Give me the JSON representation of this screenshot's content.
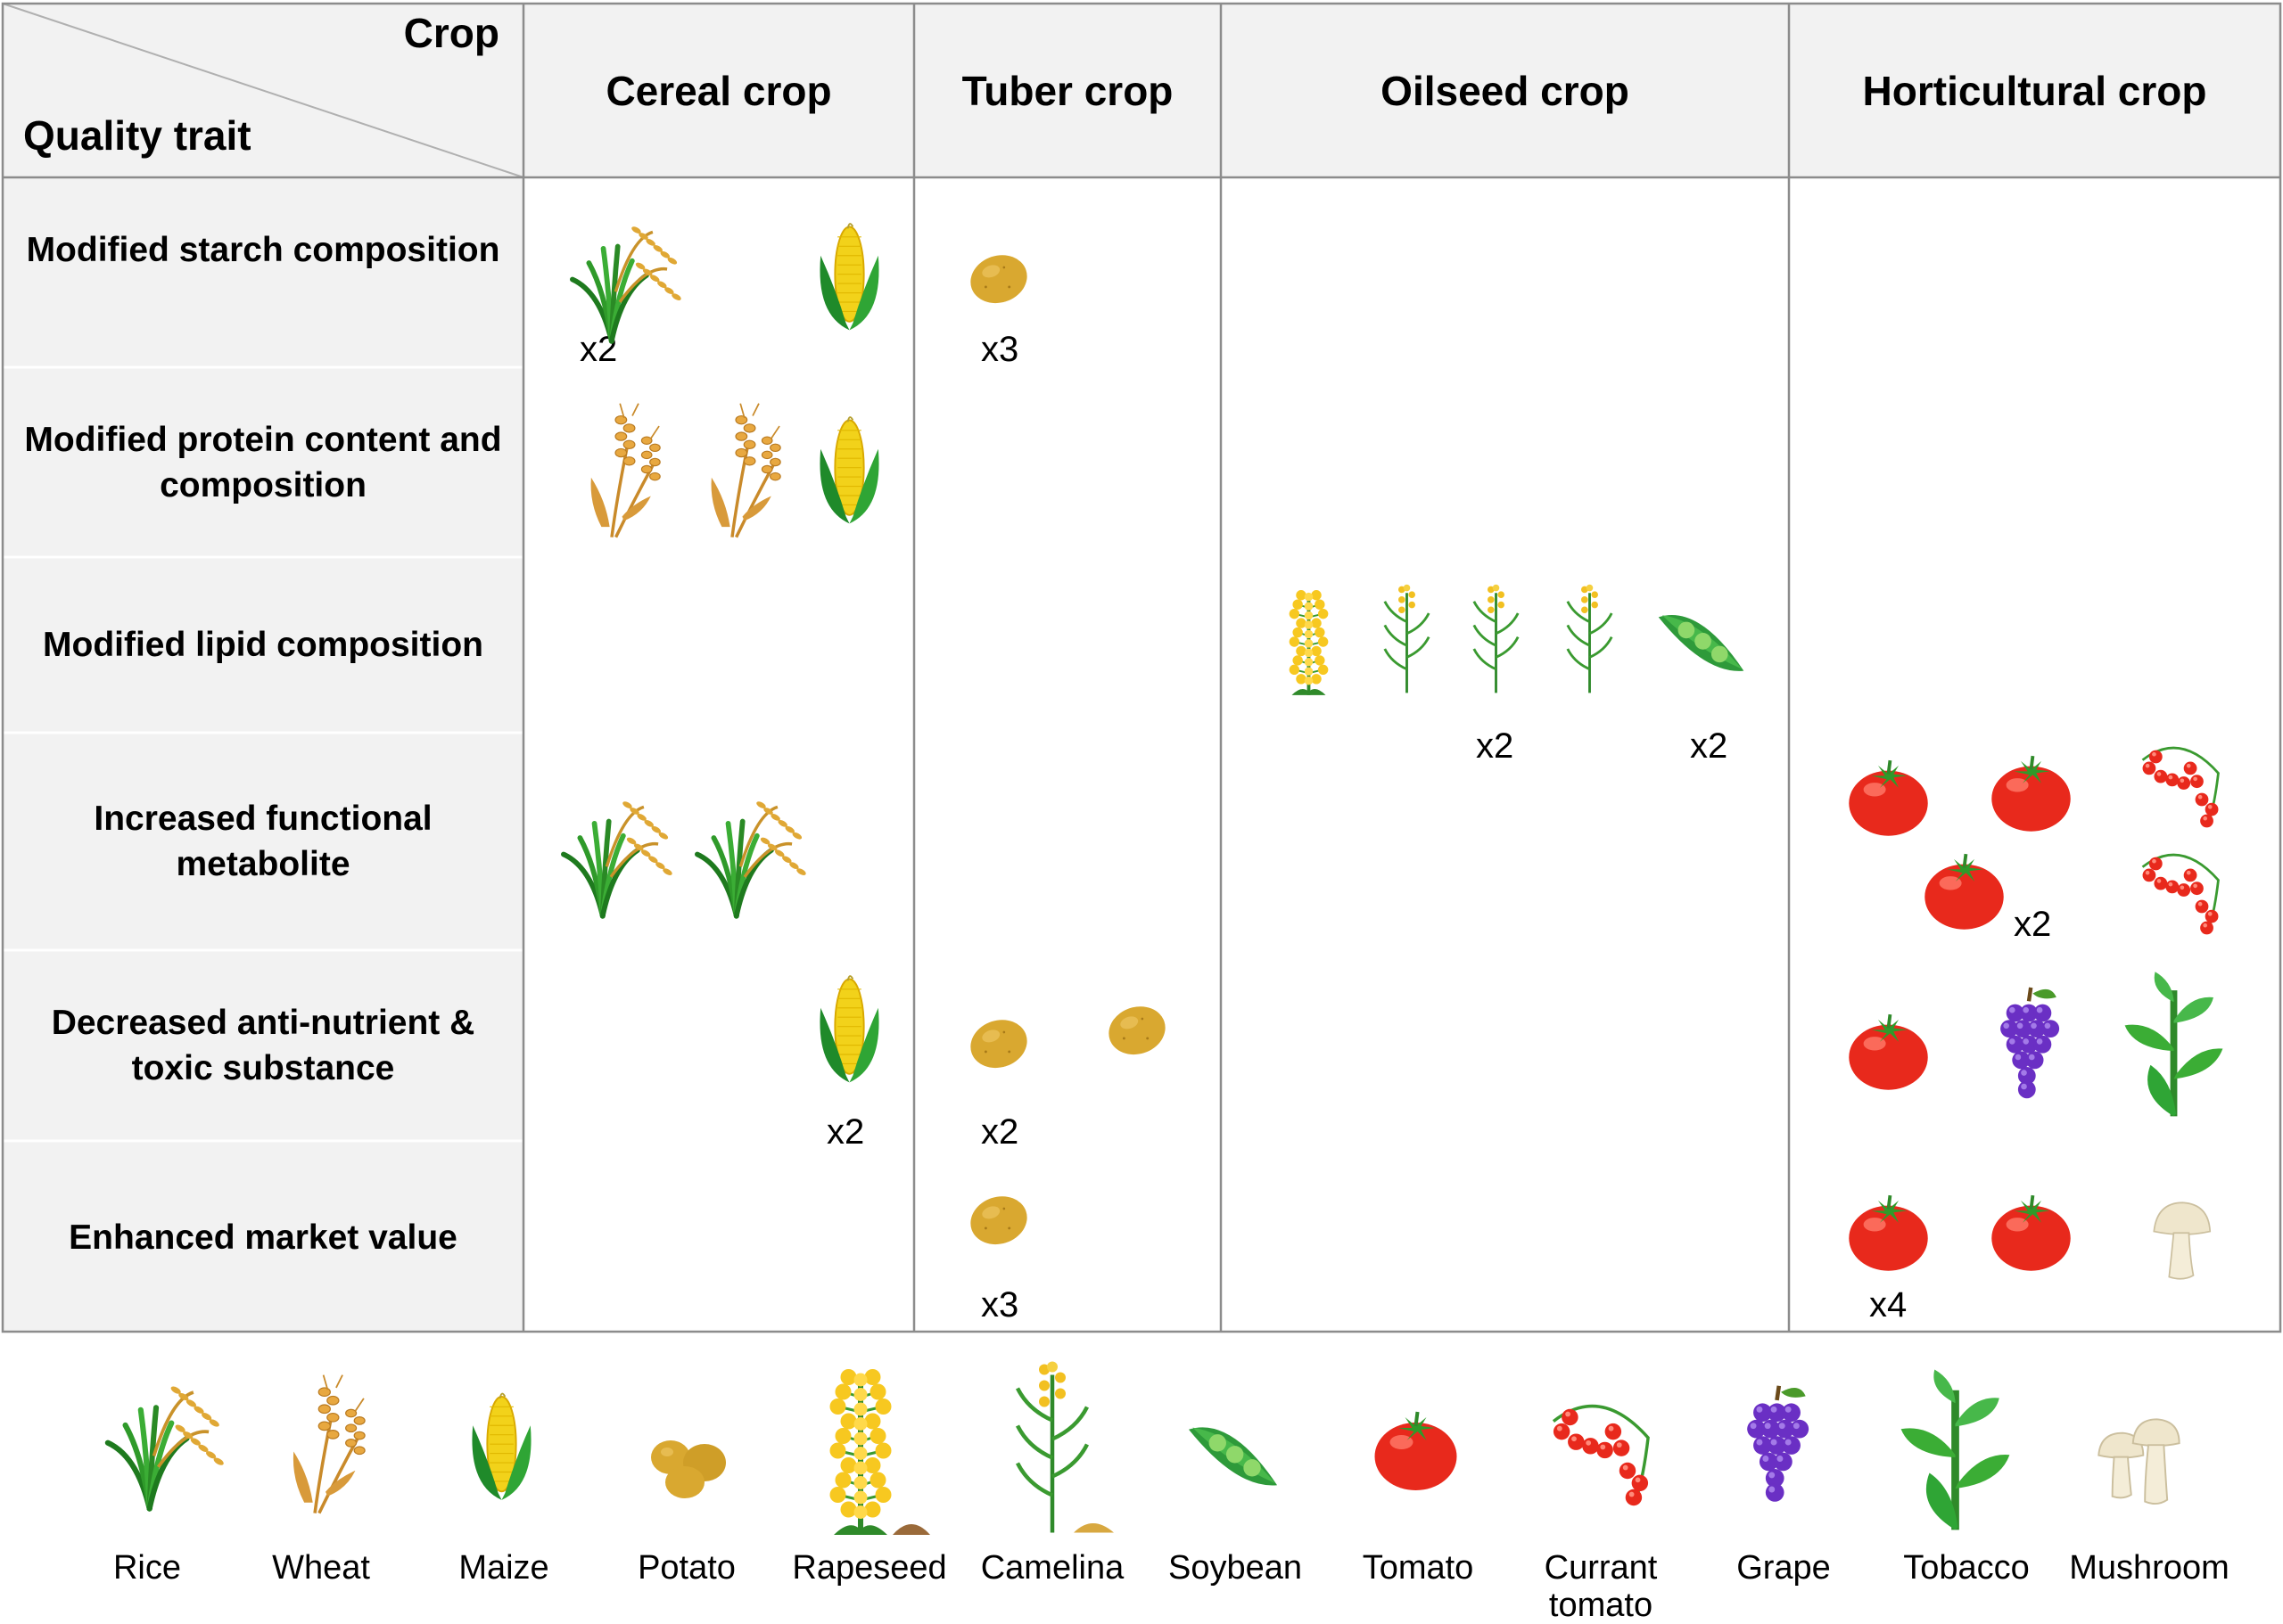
{
  "header": {
    "axis_column_label": "Crop",
    "axis_row_label": "Quality trait",
    "columns": [
      "Cereal crop",
      "Tuber crop",
      "Oilseed crop",
      "Horticultural crop"
    ]
  },
  "rows": [
    {
      "label": "Modified starch composition"
    },
    {
      "label": "Modified protein content and composition"
    },
    {
      "label": "Modified lipid composition"
    },
    {
      "label": "Increased functional metabolite"
    },
    {
      "label": "Decreased anti-nutrient & toxic substance"
    },
    {
      "label": "Enhanced market value"
    }
  ],
  "cells": [
    {
      "trait": "Modified starch composition",
      "crop_group": "Cereal crop",
      "crops": [
        "Rice",
        "Maize"
      ],
      "multiplier": "x2"
    },
    {
      "trait": "Modified starch composition",
      "crop_group": "Tuber crop",
      "crops": [
        "Potato"
      ],
      "multiplier": "x3"
    },
    {
      "trait": "Modified protein content and composition",
      "crop_group": "Cereal crop",
      "crops": [
        "Wheat",
        "Wheat",
        "Maize"
      ]
    },
    {
      "trait": "Modified lipid composition",
      "crop_group": "Oilseed crop",
      "crops": [
        "Rapeseed",
        "Camelina",
        "Camelina",
        "Camelina",
        "Soybean"
      ],
      "multipliers": [
        "x2",
        "x2"
      ]
    },
    {
      "trait": "Increased functional metabolite",
      "crop_group": "Cereal crop",
      "crops": [
        "Rice",
        "Rice"
      ]
    },
    {
      "trait": "Increased functional metabolite",
      "crop_group": "Horticultural crop",
      "crops": [
        "Tomato",
        "Tomato",
        "Currant tomato",
        "Tomato",
        "Currant tomato"
      ],
      "multiplier": "x2"
    },
    {
      "trait": "Decreased anti-nutrient & toxic substance",
      "crop_group": "Cereal crop",
      "crops": [
        "Maize"
      ],
      "multiplier": "x2"
    },
    {
      "trait": "Decreased anti-nutrient & toxic substance",
      "crop_group": "Tuber crop",
      "crops": [
        "Potato",
        "Potato"
      ],
      "multiplier": "x2"
    },
    {
      "trait": "Decreased anti-nutrient & toxic substance",
      "crop_group": "Horticultural crop",
      "crops": [
        "Tomato",
        "Grape",
        "Tobacco"
      ]
    },
    {
      "trait": "Enhanced market value",
      "crop_group": "Tuber crop",
      "crops": [
        "Potato"
      ],
      "multiplier": "x3"
    },
    {
      "trait": "Enhanced market value",
      "crop_group": "Horticultural crop",
      "crops": [
        "Tomato",
        "Tomato",
        "Mushroom"
      ],
      "multiplier": "x4"
    }
  ],
  "legend": [
    {
      "name": "Rice",
      "icon": "rice-icon"
    },
    {
      "name": "Wheat",
      "icon": "wheat-icon"
    },
    {
      "name": "Maize",
      "icon": "maize-icon"
    },
    {
      "name": "Potato",
      "icon": "potato-icon"
    },
    {
      "name": "Rapeseed",
      "icon": "rapeseed-icon"
    },
    {
      "name": "Camelina",
      "icon": "camelina-icon"
    },
    {
      "name": "Soybean",
      "icon": "soybean-icon"
    },
    {
      "name": "Tomato",
      "icon": "tomato-icon"
    },
    {
      "name": "Currant tomato",
      "icon": "currant-tomato-icon"
    },
    {
      "name": "Grape",
      "icon": "grape-icon"
    },
    {
      "name": "Tobacco",
      "icon": "tobacco-icon"
    },
    {
      "name": "Mushroom",
      "icon": "mushroom-icon"
    }
  ],
  "colors": {
    "header_fill": "#f2f2f2",
    "grid_line": "#8c8c8c",
    "tomato": "#e8291c",
    "potato": "#d9a830",
    "grape": "#6a2fc4",
    "leaf_green": "#2f9a2a",
    "maize_yellow": "#f2d21a",
    "grain_gold": "#e0a835"
  }
}
